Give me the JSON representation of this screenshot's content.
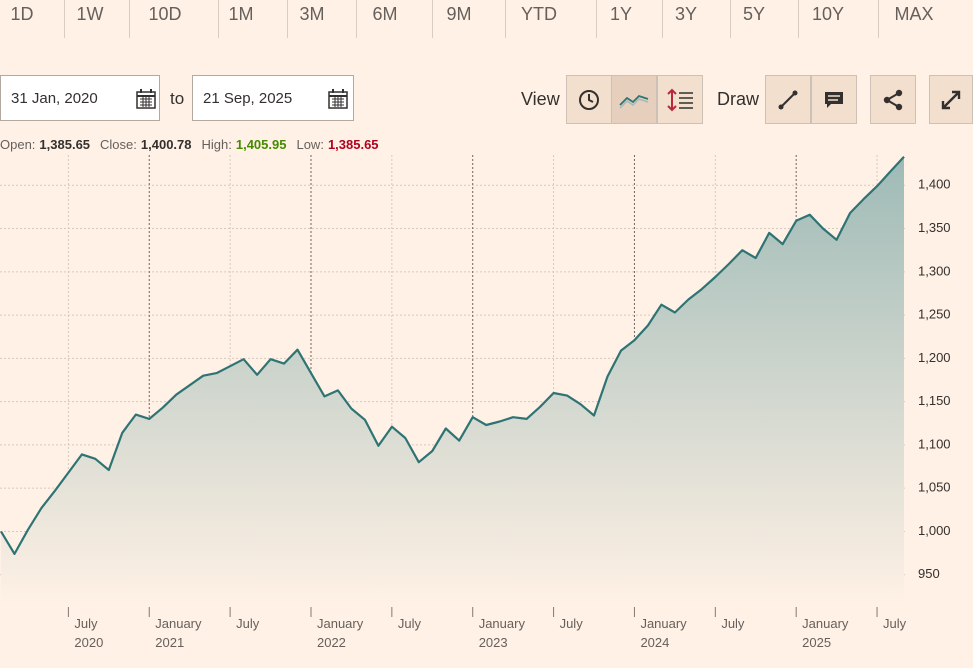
{
  "tabs": [
    "1D",
    "1W",
    "10D",
    "1M",
    "3M",
    "6M",
    "9M",
    "YTD",
    "1Y",
    "3Y",
    "5Y",
    "10Y",
    "MAX"
  ],
  "date_range": {
    "from": "31 Jan, 2020",
    "separator": "to",
    "to": "21 Sep, 2025"
  },
  "toolbar": {
    "view": "View",
    "draw": "Draw"
  },
  "ohlc": [
    {
      "label": "Open:",
      "value": "1,385.65"
    },
    {
      "label": "Close:",
      "value": "1,400.78"
    },
    {
      "label": "High:",
      "value": "1,405.95"
    },
    {
      "label": "Low:",
      "value": "1,385.65"
    }
  ],
  "chart_data": {
    "type": "line",
    "color": "#2e7474",
    "grid": true,
    "x": [
      "2020-02",
      "2020-03",
      "2020-04",
      "2020-05",
      "2020-06",
      "2020-07",
      "2020-08",
      "2020-09",
      "2020-10",
      "2020-11",
      "2020-12",
      "2021-01",
      "2021-02",
      "2021-03",
      "2021-04",
      "2021-05",
      "2021-06",
      "2021-07",
      "2021-08",
      "2021-09",
      "2021-10",
      "2021-11",
      "2021-12",
      "2022-01",
      "2022-02",
      "2022-03",
      "2022-04",
      "2022-05",
      "2022-06",
      "2022-07",
      "2022-08",
      "2022-09",
      "2022-10",
      "2022-11",
      "2022-12",
      "2023-01",
      "2023-02",
      "2023-03",
      "2023-04",
      "2023-05",
      "2023-06",
      "2023-07",
      "2023-08",
      "2023-09",
      "2023-10",
      "2023-11",
      "2023-12",
      "2024-01",
      "2024-02",
      "2024-03",
      "2024-04",
      "2024-05",
      "2024-06",
      "2024-07",
      "2024-08",
      "2024-09",
      "2024-10",
      "2024-11",
      "2024-12",
      "2025-01",
      "2025-02",
      "2025-03",
      "2025-04",
      "2025-05",
      "2025-06",
      "2025-07",
      "2025-08",
      "2025-09"
    ],
    "values": [
      1000,
      974,
      1002,
      1027,
      1047,
      1068,
      1089,
      1084,
      1071,
      1114,
      1135,
      1130,
      1143,
      1158,
      1169,
      1180,
      1183,
      1191,
      1199,
      1181,
      1199,
      1194,
      1210,
      1183,
      1156,
      1163,
      1142,
      1129,
      1099,
      1121,
      1108,
      1080,
      1093,
      1119,
      1105,
      1132,
      1123,
      1127,
      1132,
      1130,
      1144,
      1160,
      1157,
      1147,
      1134,
      1179,
      1209,
      1221,
      1238,
      1262,
      1253,
      1268,
      1280,
      1294,
      1309,
      1325,
      1316,
      1345,
      1332,
      1359,
      1366,
      1350,
      1337,
      1368,
      1384,
      1399,
      1416,
      1433
    ],
    "xlim": [
      "2020-02",
      "2025-09"
    ],
    "xticks": [
      {
        "value": "2020-07",
        "label": "July\n2020"
      },
      {
        "value": "2021-01",
        "label": "January\n2021"
      },
      {
        "value": "2021-07",
        "label": "July"
      },
      {
        "value": "2022-01",
        "label": "January\n2022"
      },
      {
        "value": "2022-07",
        "label": "July"
      },
      {
        "value": "2023-01",
        "label": "January\n2023"
      },
      {
        "value": "2023-07",
        "label": "July"
      },
      {
        "value": "2024-01",
        "label": "January\n2024"
      },
      {
        "value": "2024-07",
        "label": "July"
      },
      {
        "value": "2025-01",
        "label": "January\n2025"
      },
      {
        "value": "2025-07",
        "label": "July"
      }
    ],
    "ylim": [
      915,
      1435
    ],
    "yticks": [
      950,
      {
        "value": 1000,
        "label": "1,000"
      },
      {
        "value": 1050,
        "label": "1,050"
      },
      {
        "value": 1100,
        "label": "1,100"
      },
      {
        "value": 1150,
        "label": "1,150"
      },
      {
        "value": 1200,
        "label": "1,200"
      },
      {
        "value": 1250,
        "label": "1,250"
      },
      {
        "value": 1300,
        "label": "1,300"
      },
      {
        "value": 1350,
        "label": "1,350"
      },
      {
        "value": 1400,
        "label": "1,400"
      }
    ]
  }
}
